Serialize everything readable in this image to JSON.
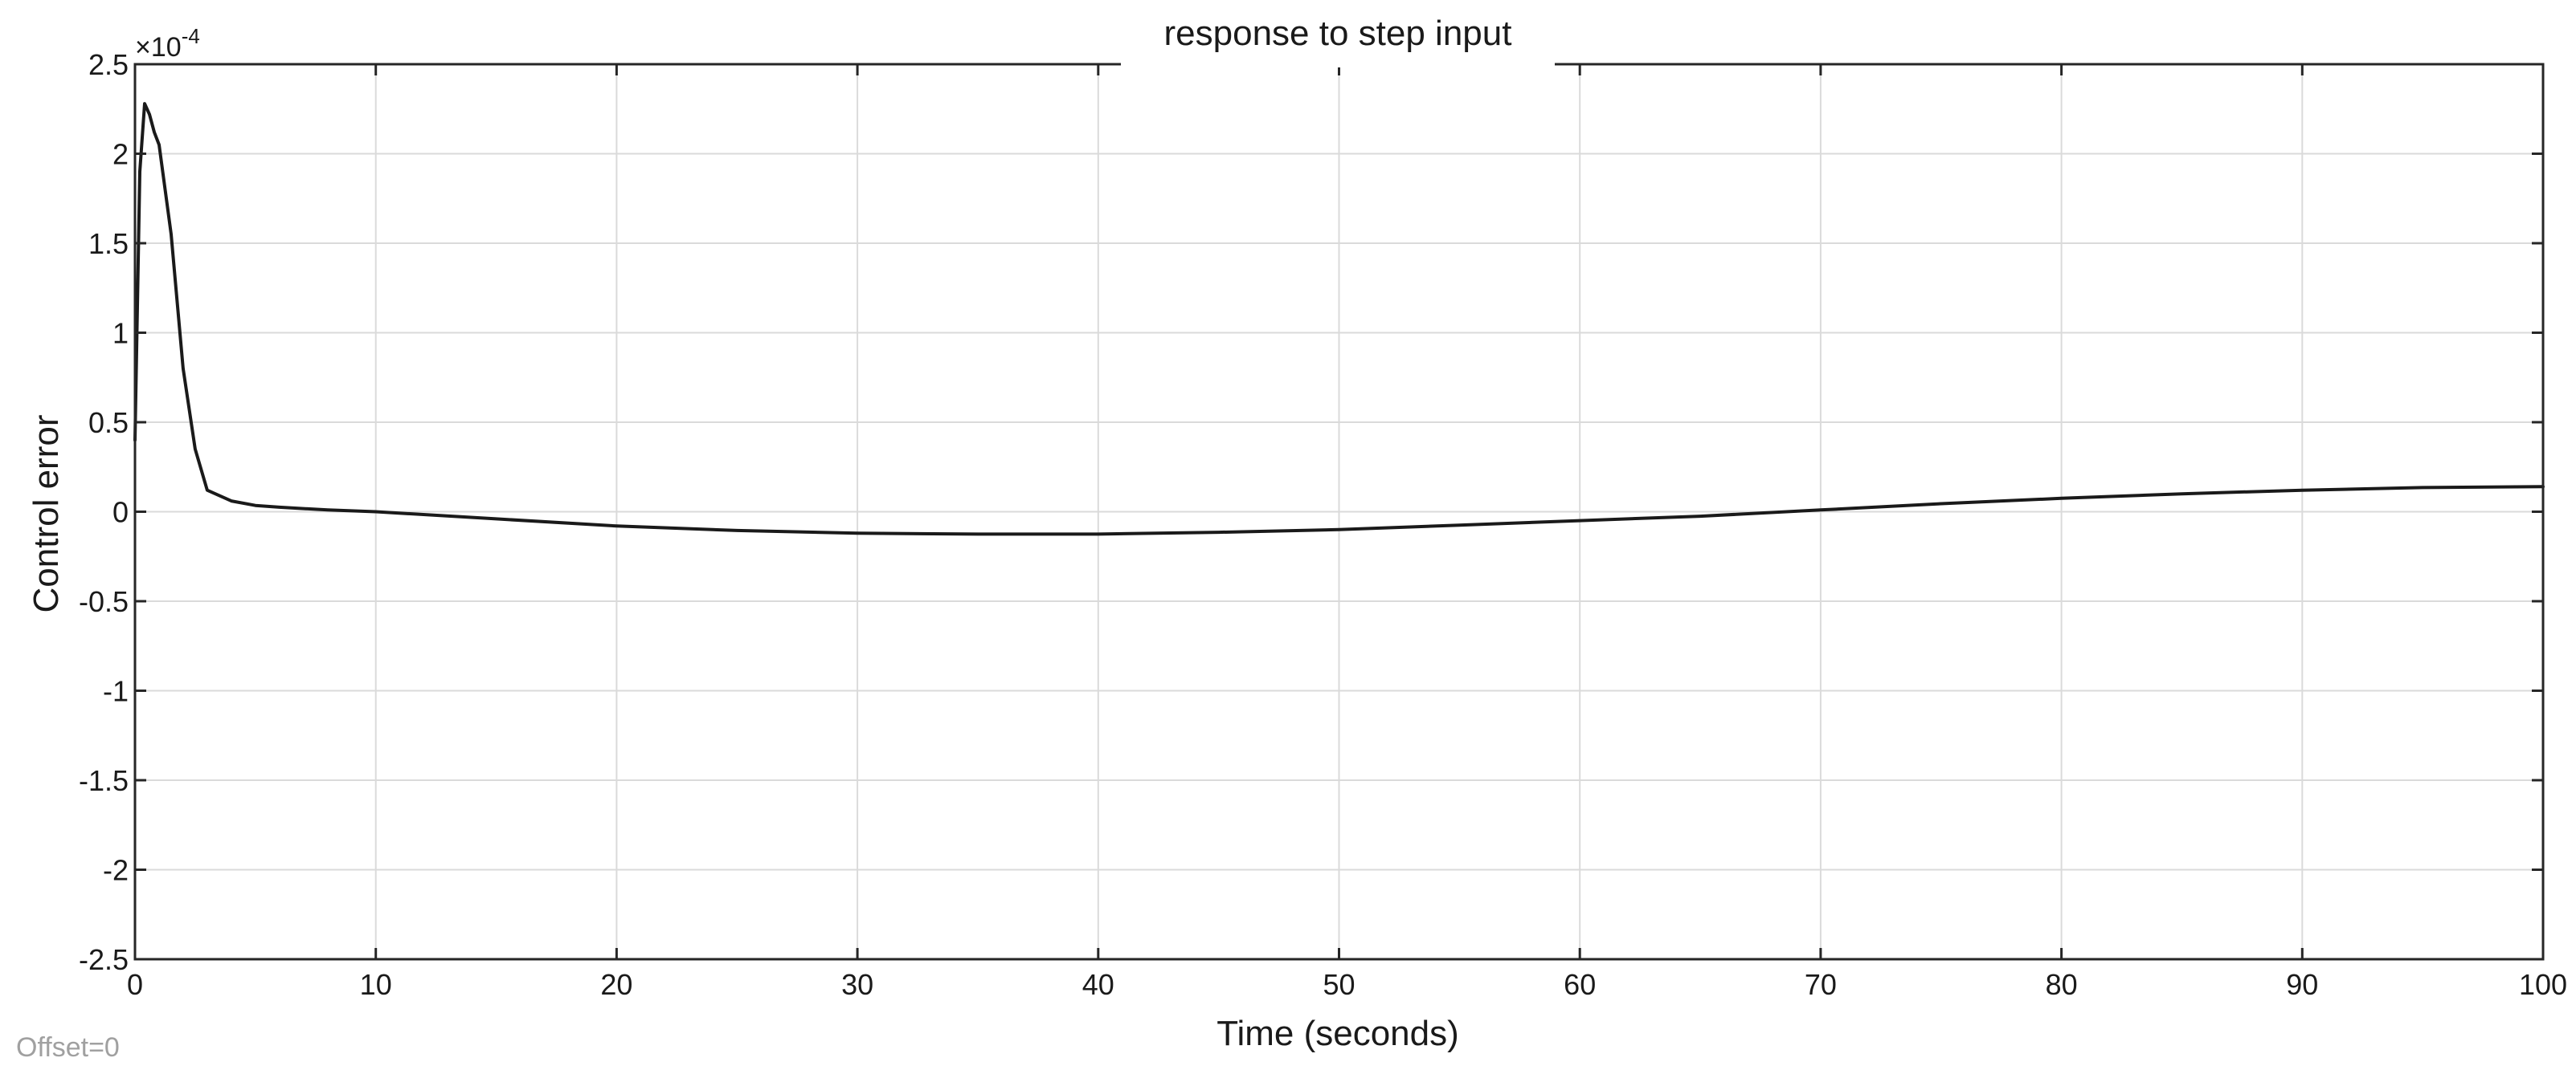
{
  "chart_data": {
    "type": "line",
    "title": "response to step input",
    "xlabel": "Time (seconds)",
    "ylabel": "Control error",
    "y_multiplier": "×10",
    "y_exponent": "-4",
    "offset_note": "Offset=0",
    "xlim": [
      0,
      100
    ],
    "ylim": [
      -2.5,
      2.5
    ],
    "x_ticks": [
      0,
      10,
      20,
      30,
      40,
      50,
      60,
      70,
      80,
      90,
      100
    ],
    "x_tick_labels": [
      "0",
      "10",
      "20",
      "30",
      "40",
      "50",
      "60",
      "70",
      "80",
      "90",
      "100"
    ],
    "y_ticks": [
      2.5,
      2,
      1.5,
      1,
      0.5,
      0,
      -0.5,
      -1,
      -1.5,
      -2,
      -2.5
    ],
    "y_tick_labels": [
      "2.5",
      "2",
      "1.5",
      "1",
      "0.5",
      "0",
      "-0.5",
      "-1",
      "-1.5",
      "-2",
      "-2.5"
    ],
    "grid": true,
    "series": [
      {
        "color": "#1a1a1a",
        "x": [
          0,
          0.2,
          0.4,
          0.6,
          0.8,
          1.0,
          1.5,
          2.0,
          2.5,
          3.0,
          4.0,
          5.0,
          6.0,
          8.0,
          10,
          15,
          20,
          25,
          30,
          35,
          40,
          45,
          50,
          55,
          60,
          65,
          70,
          75,
          80,
          85,
          90,
          95,
          100
        ],
        "y": [
          0.4,
          1.9,
          2.28,
          2.22,
          2.12,
          2.05,
          1.55,
          0.8,
          0.35,
          0.12,
          0.06,
          0.035,
          0.025,
          0.01,
          0.0,
          -0.04,
          -0.08,
          -0.105,
          -0.12,
          -0.125,
          -0.125,
          -0.115,
          -0.1,
          -0.075,
          -0.05,
          -0.025,
          0.01,
          0.045,
          0.075,
          0.1,
          0.12,
          0.135,
          0.14
        ]
      }
    ]
  }
}
